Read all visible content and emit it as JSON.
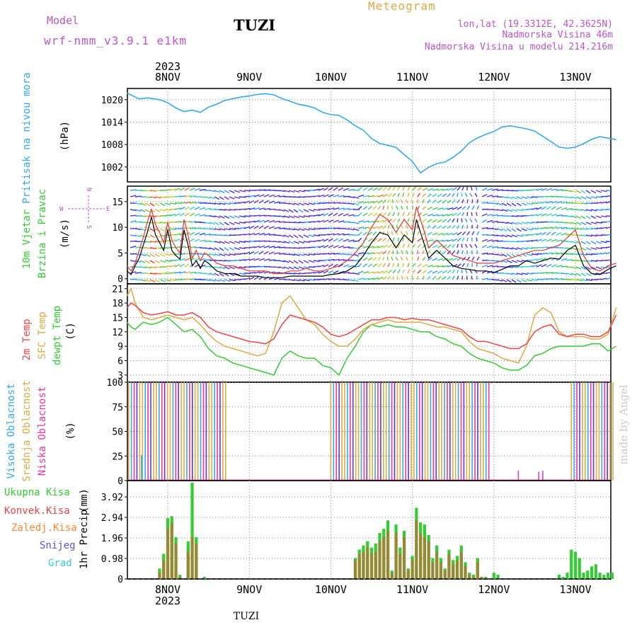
{
  "header": {
    "model_label": "Model",
    "model_name": "wrf-nmm_v3.9.1 e1km",
    "station_title": "TUZI",
    "meteogram_label": "Meteogram",
    "lonlat": "lon,lat (19.3312E, 42.3625N)",
    "elevation": "Nadmorska Visina 46m",
    "model_elevation": "Nadmorska Visina u modelu 214.216m"
  },
  "footer": {
    "station": "TUZI",
    "credit": "made by Angel"
  },
  "time_axis": {
    "year_top": "2023",
    "year_bottom": "2023",
    "days": [
      "8NOV",
      "9NOV",
      "10NOV",
      "11NOV",
      "12NOV",
      "13NOV"
    ]
  },
  "colors": {
    "pressure": "#33aaee",
    "wind_speed": "#000000",
    "gust": "#ee3333",
    "temp2m": "#ee4444",
    "sfc_temp": "#ddaa44",
    "dewpt": "#33cc33",
    "high_cloud": "#33aaee",
    "mid_cloud": "#ddaa44",
    "low_cloud": "#ee33aa",
    "precip_total": "#33cc33",
    "precip_conv": "#ee4444",
    "freezing_rain": "#ff8833",
    "snow": "#5555ee",
    "hail": "#33cccc",
    "label_magenta": "#bb55cc",
    "label_gold": "#ddaa44"
  },
  "chart_data": [
    {
      "type": "line",
      "ylabel": [
        "Pritisak na nivou mora",
        "(hPa)"
      ],
      "yticks": [
        1002,
        1008,
        1014,
        1020
      ],
      "ylim": [
        998,
        1023
      ],
      "x_days": [
        -0.5,
        -0.35,
        -0.25,
        -0.1,
        0.0,
        0.1,
        0.2,
        0.3,
        0.4,
        0.5,
        0.6,
        0.7,
        0.8,
        0.9,
        1.0,
        1.1,
        1.2,
        1.3,
        1.4,
        1.5,
        1.6,
        1.7,
        1.8,
        1.9,
        2.0,
        2.1,
        2.2,
        2.3,
        2.4,
        2.5,
        2.6,
        2.7,
        2.8,
        2.9,
        3.0,
        3.1,
        3.2,
        3.3,
        3.4,
        3.5,
        3.6,
        3.7,
        3.8,
        3.9,
        4.0,
        4.1,
        4.2,
        4.3,
        4.4,
        4.5,
        4.6,
        4.7,
        4.8,
        4.9,
        5.0,
        5.1,
        5.2,
        5.3,
        5.5
      ],
      "series": [
        {
          "values": [
            1021.8,
            1020.2,
            1020.5,
            1020.0,
            1019.2,
            1017.8,
            1016.8,
            1017.2,
            1016.6,
            1018.0,
            1018.8,
            1019.8,
            1020.3,
            1020.7,
            1021.0,
            1021.4,
            1021.6,
            1021.3,
            1020.3,
            1019.6,
            1018.8,
            1018.4,
            1017.8,
            1016.6,
            1016.0,
            1015.8,
            1014.6,
            1013.0,
            1011.8,
            1009.6,
            1008.3,
            1007.8,
            1007.2,
            1005.3,
            1003.5,
            1000.4,
            1001.9,
            1002.9,
            1003.3,
            1004.6,
            1006.2,
            1008.5,
            1009.8,
            1010.7,
            1011.5,
            1012.7,
            1013.0,
            1012.6,
            1012.2,
            1011.6,
            1010.2,
            1008.8,
            1007.3,
            1007.0,
            1007.3,
            1008.2,
            1009.4,
            1010.1,
            1009.3
          ]
        }
      ]
    },
    {
      "type": "line",
      "ylabel": [
        "10m Vjetar",
        "Brzina i Pravac",
        "(m/s)"
      ],
      "compass": [
        "N",
        "S",
        "W",
        "E"
      ],
      "yticks": [
        0,
        5,
        10,
        15
      ],
      "ylim": [
        -1,
        18
      ],
      "x_days": [
        -0.5,
        -0.45,
        -0.4,
        -0.35,
        -0.3,
        -0.25,
        -0.2,
        -0.15,
        -0.1,
        -0.05,
        0.0,
        0.05,
        0.1,
        0.15,
        0.2,
        0.25,
        0.3,
        0.35,
        0.4,
        0.45,
        0.5,
        0.6,
        0.7,
        0.8,
        0.9,
        1.0,
        1.1,
        1.2,
        1.3,
        1.4,
        1.5,
        1.6,
        1.7,
        1.8,
        1.9,
        2.0,
        2.1,
        2.2,
        2.3,
        2.4,
        2.5,
        2.6,
        2.7,
        2.8,
        2.9,
        3.0,
        3.05,
        3.1,
        3.15,
        3.2,
        3.3,
        3.4,
        3.5,
        3.6,
        3.7,
        3.8,
        3.9,
        4.0,
        4.1,
        4.2,
        4.3,
        4.4,
        4.5,
        4.6,
        4.7,
        4.8,
        4.9,
        5.0,
        5.1,
        5.2,
        5.3,
        5.4,
        5.5
      ],
      "series": [
        {
          "values": [
            1.5,
            0.8,
            2.5,
            4.0,
            6.5,
            9.0,
            12.0,
            8.5,
            7.0,
            5.5,
            9.5,
            5.5,
            4.5,
            3.8,
            9.5,
            6.5,
            2.5,
            3.5,
            2.0,
            3.5,
            3.0,
            1.5,
            1.0,
            1.0,
            0.5,
            0.5,
            0.5,
            0.2,
            0.2,
            0.2,
            0.5,
            0.5,
            0.5,
            0.5,
            0.5,
            0.8,
            1.0,
            1.5,
            2.5,
            4.5,
            7.0,
            9.0,
            8.5,
            6.0,
            8.5,
            7.0,
            11.5,
            9.0,
            6.5,
            4.0,
            5.5,
            4.0,
            2.5,
            2.0,
            1.8,
            1.5,
            1.5,
            1.2,
            1.8,
            2.5,
            2.5,
            3.5,
            3.0,
            3.5,
            4.0,
            3.8,
            5.5,
            6.5,
            2.5,
            1.0,
            0.8,
            1.8,
            2.5
          ]
        },
        {
          "values": [
            2.5,
            1.5,
            3.0,
            5.5,
            8.0,
            11.0,
            13.5,
            10.5,
            9.0,
            7.0,
            11.0,
            7.5,
            6.0,
            5.0,
            11.5,
            8.5,
            4.0,
            5.5,
            3.5,
            5.0,
            4.5,
            3.0,
            2.5,
            2.5,
            2.0,
            1.5,
            1.5,
            1.5,
            1.0,
            1.0,
            1.5,
            1.5,
            2.0,
            1.5,
            1.5,
            2.0,
            2.5,
            3.5,
            5.0,
            7.0,
            10.0,
            12.5,
            11.5,
            9.0,
            11.5,
            9.5,
            14.0,
            11.5,
            9.0,
            6.0,
            7.5,
            6.0,
            4.5,
            4.0,
            3.5,
            3.0,
            3.0,
            3.0,
            3.5,
            4.0,
            4.5,
            5.0,
            5.5,
            5.5,
            6.0,
            6.5,
            8.0,
            9.5,
            4.5,
            2.0,
            1.5,
            2.5,
            3.0
          ]
        }
      ]
    },
    {
      "type": "line",
      "ylabel": [
        "2m Temp",
        "SFC Temp",
        "dewpt Temp",
        "(C)"
      ],
      "yticks": [
        3,
        6,
        9,
        12,
        15,
        18,
        21
      ],
      "ylim": [
        1.5,
        22
      ],
      "x_days": [
        -0.5,
        -0.45,
        -0.4,
        -0.3,
        -0.2,
        -0.1,
        0.0,
        0.1,
        0.2,
        0.3,
        0.4,
        0.5,
        0.6,
        0.7,
        0.8,
        0.9,
        1.0,
        1.1,
        1.2,
        1.3,
        1.4,
        1.5,
        1.6,
        1.7,
        1.8,
        1.9,
        2.0,
        2.1,
        2.2,
        2.3,
        2.4,
        2.5,
        2.6,
        2.7,
        2.8,
        2.9,
        3.0,
        3.1,
        3.2,
        3.3,
        3.4,
        3.5,
        3.6,
        3.7,
        3.8,
        3.9,
        4.0,
        4.1,
        4.2,
        4.3,
        4.4,
        4.5,
        4.6,
        4.7,
        4.8,
        4.9,
        5.0,
        5.1,
        5.2,
        5.3,
        5.4,
        5.5
      ],
      "series": [
        {
          "values": [
            17.0,
            18.0,
            17.5,
            16.0,
            15.5,
            15.8,
            16.2,
            15.5,
            15.5,
            16.0,
            15.0,
            13.0,
            12.0,
            11.5,
            11.0,
            10.5,
            10.0,
            9.8,
            9.5,
            10.5,
            13.5,
            15.5,
            15.0,
            14.5,
            14.0,
            13.0,
            11.5,
            11.0,
            11.5,
            12.5,
            13.5,
            14.5,
            14.5,
            15.0,
            15.0,
            14.5,
            14.8,
            14.5,
            14.5,
            14.0,
            13.5,
            13.0,
            12.5,
            11.0,
            10.0,
            10.0,
            9.5,
            9.0,
            8.5,
            8.5,
            9.5,
            12.0,
            13.0,
            13.5,
            11.5,
            11.0,
            11.5,
            11.5,
            11.0,
            11.0,
            12.0,
            15.5
          ]
        },
        {
          "values": [
            19.5,
            21.0,
            18.0,
            15.0,
            14.5,
            15.0,
            15.5,
            15.0,
            14.5,
            15.0,
            13.5,
            11.5,
            10.0,
            9.0,
            8.5,
            8.0,
            7.5,
            7.0,
            7.5,
            12.0,
            18.0,
            19.5,
            17.0,
            14.5,
            13.5,
            11.5,
            10.0,
            9.0,
            9.0,
            10.5,
            12.5,
            13.5,
            14.0,
            14.5,
            14.0,
            14.0,
            14.0,
            14.0,
            13.5,
            13.0,
            13.0,
            12.5,
            12.0,
            10.0,
            8.5,
            8.0,
            7.5,
            6.5,
            6.0,
            5.5,
            9.0,
            15.5,
            17.0,
            16.0,
            12.0,
            11.0,
            11.0,
            11.0,
            10.5,
            10.5,
            11.5,
            17.0
          ]
        },
        {
          "values": [
            14.0,
            13.0,
            12.5,
            14.0,
            13.5,
            14.0,
            15.0,
            13.5,
            12.0,
            12.5,
            11.0,
            8.5,
            7.0,
            6.5,
            5.5,
            5.0,
            4.5,
            4.0,
            3.5,
            3.0,
            6.5,
            8.0,
            7.0,
            6.5,
            6.5,
            5.0,
            4.5,
            3.0,
            6.5,
            9.0,
            12.0,
            13.5,
            13.0,
            13.5,
            13.0,
            13.0,
            12.5,
            12.0,
            12.0,
            11.0,
            10.5,
            9.5,
            9.0,
            7.5,
            6.5,
            6.0,
            5.5,
            4.5,
            4.0,
            4.0,
            5.0,
            7.0,
            7.5,
            8.5,
            9.0,
            9.0,
            9.0,
            9.0,
            9.5,
            9.5,
            8.0,
            9.0
          ]
        }
      ]
    },
    {
      "type": "bar",
      "ylabel": [
        "Visoka Oblacnost",
        "Srednja Oblacnost",
        "Niska Oblacnost",
        "(%)"
      ],
      "yticks": [
        0,
        25,
        50,
        75,
        100
      ],
      "ylim": [
        0,
        100
      ],
      "cloudy_periods_days": [
        [
          -0.48,
          0.72
        ],
        [
          2.0,
          3.95
        ],
        [
          4.95,
          5.48
        ]
      ],
      "sparse_low_cloud": [
        {
          "x_day": 4.3,
          "value": 10
        },
        {
          "x_day": 4.55,
          "value": 9
        },
        {
          "x_day": 4.6,
          "value": 10
        }
      ],
      "low_cloud_sample": {
        "x_day": -0.32,
        "value": 26
      }
    },
    {
      "type": "bar",
      "ylabel": [
        "1hr Precip",
        "(mm)"
      ],
      "legend": [
        "Ukupna Kisa",
        "Konvek.Kisa",
        "Zaledj.Kisa",
        "Snijeg",
        "Grad"
      ],
      "yticks": [
        0,
        0.98,
        1.96,
        2.94,
        3.92
      ],
      "ylim": [
        0,
        4.7
      ],
      "x_days": [
        -0.1,
        -0.05,
        0.0,
        0.05,
        0.1,
        0.15,
        0.2,
        0.25,
        0.3,
        0.35,
        0.45,
        2.3,
        2.35,
        2.4,
        2.45,
        2.5,
        2.55,
        2.6,
        2.65,
        2.7,
        2.75,
        2.8,
        2.85,
        2.9,
        2.95,
        3.0,
        3.05,
        3.1,
        3.15,
        3.2,
        3.25,
        3.3,
        3.35,
        3.4,
        3.45,
        3.5,
        3.55,
        3.6,
        3.65,
        3.7,
        3.75,
        3.8,
        3.85,
        3.9,
        4.0,
        4.05,
        4.8,
        4.85,
        4.9,
        4.95,
        5.0,
        5.05,
        5.1,
        5.15,
        5.2,
        5.25,
        5.3,
        5.35,
        5.4,
        5.45
      ],
      "series": [
        {
          "name": "Ukupna Kisa",
          "values": [
            0.5,
            1.2,
            2.9,
            3.0,
            2.0,
            0.2,
            0.0,
            1.8,
            4.6,
            2.0,
            0.1,
            1.0,
            1.4,
            1.6,
            1.8,
            1.5,
            1.7,
            2.2,
            2.4,
            2.8,
            0.4,
            2.6,
            1.5,
            2.3,
            0.5,
            1.1,
            3.4,
            2.7,
            2.6,
            2.1,
            1.0,
            1.6,
            1.0,
            0.5,
            1.4,
            0.9,
            1.1,
            1.6,
            0.8,
            0.3,
            0.2,
            1.0,
            0.1,
            0.1,
            0.3,
            0.2,
            0.2,
            0.1,
            0.3,
            1.4,
            1.3,
            1.0,
            0.3,
            0.4,
            0.6,
            0.7,
            0.3,
            0.2,
            0.3,
            0.3
          ]
        },
        {
          "name": "Konvek.Kisa",
          "values": [
            0.3,
            0.9,
            2.4,
            2.7,
            1.7,
            0.1,
            0.0,
            1.3,
            2.0,
            1.7,
            0.0,
            0.9,
            1.2,
            1.3,
            1.5,
            1.2,
            1.3,
            1.8,
            2.0,
            2.3,
            0.3,
            2.2,
            1.2,
            2.0,
            0.4,
            0.9,
            2.8,
            2.2,
            2.0,
            1.8,
            0.8,
            1.3,
            0.8,
            0.4,
            1.2,
            0.7,
            0.9,
            1.3,
            0.6,
            0.2,
            0.1,
            0.8,
            0.1,
            0.0,
            0.0,
            0.0,
            0.0,
            0.0,
            0.0,
            0.0,
            0.0,
            0.0,
            0.0,
            0.0,
            0.0,
            0.0,
            0.0,
            0.0,
            0.0,
            0.0
          ]
        }
      ]
    }
  ]
}
